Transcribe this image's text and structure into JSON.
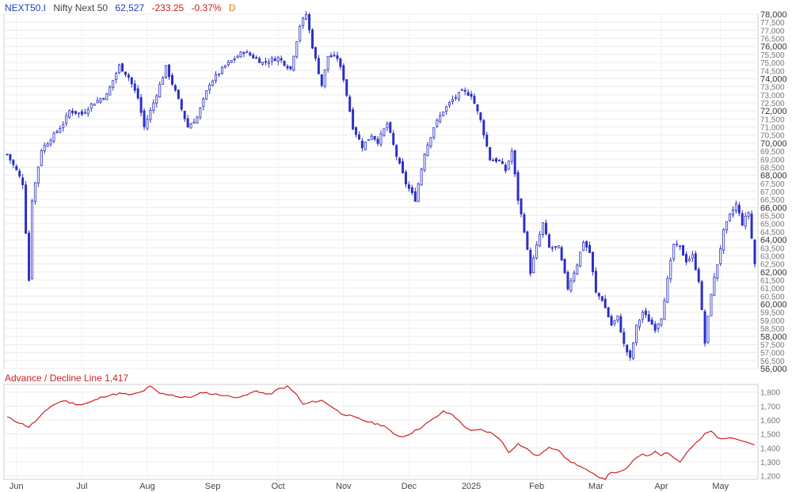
{
  "header": {
    "symbol": "NEXT50.I",
    "name": "Nifty Next 50",
    "last": "62,527",
    "change": "-233.25",
    "change_pct": "-0.37%",
    "period": "D"
  },
  "colors": {
    "candle": "#2b2fc4",
    "adline": "#cc1f1f",
    "symbol": "#1f3fbf",
    "last": "#1f3fbf",
    "change": "#cc1f1f",
    "period": "#e07a10",
    "grid": "#ececec"
  },
  "adline_panel": {
    "label": "Advance / Decline Line 1,417"
  },
  "chart_data": [
    {
      "type": "candlestick",
      "ylim": [
        56000,
        78000
      ],
      "y_ticks_major": [
        "78,000",
        "76,000",
        "74,000",
        "72,000",
        "70,000",
        "68,000",
        "66,000",
        "64,000",
        "62,000",
        "60,000",
        "58,000",
        "56,000"
      ],
      "y_ticks_minor": [
        "77,500",
        "77,000",
        "76,500",
        "75,500",
        "75,000",
        "74,500",
        "73,500",
        "73,000",
        "72,500",
        "71,500",
        "71,000",
        "70,500",
        "69,500",
        "69,000",
        "68,500",
        "67,500",
        "67,000",
        "66,500",
        "65,500",
        "65,000",
        "64,500",
        "63,500",
        "63,000",
        "62,500",
        "61,500",
        "61,000",
        "60,500",
        "59,500",
        "59,000",
        "58,500",
        "57,500",
        "57,000",
        "56,500"
      ],
      "x_labels": [
        "Jun",
        "Jul",
        "Aug",
        "Sep",
        "Oct",
        "Nov",
        "Dec",
        "2025",
        "Feb",
        "Mar",
        "Apr",
        "May"
      ],
      "anchors": [
        [
          0,
          69300
        ],
        [
          3,
          68300
        ],
        [
          5,
          67500
        ],
        [
          7,
          61500
        ],
        [
          8,
          66500
        ],
        [
          11,
          69600
        ],
        [
          15,
          70500
        ],
        [
          18,
          71200
        ],
        [
          20,
          72000
        ],
        [
          24,
          71800
        ],
        [
          27,
          72400
        ],
        [
          32,
          73000
        ],
        [
          36,
          74800
        ],
        [
          39,
          74100
        ],
        [
          42,
          72800
        ],
        [
          44,
          71000
        ],
        [
          47,
          72500
        ],
        [
          51,
          74700
        ],
        [
          54,
          73200
        ],
        [
          58,
          71000
        ],
        [
          61,
          71600
        ],
        [
          65,
          73700
        ],
        [
          70,
          74800
        ],
        [
          76,
          75700
        ],
        [
          82,
          75000
        ],
        [
          87,
          75300
        ],
        [
          91,
          74600
        ],
        [
          94,
          77300
        ],
        [
          96,
          78000
        ],
        [
          98,
          76000
        ],
        [
          101,
          73600
        ],
        [
          103,
          75400
        ],
        [
          106,
          75300
        ],
        [
          108,
          74000
        ],
        [
          111,
          71000
        ],
        [
          114,
          69800
        ],
        [
          117,
          70500
        ],
        [
          119,
          70100
        ],
        [
          122,
          71200
        ],
        [
          125,
          69200
        ],
        [
          128,
          67500
        ],
        [
          131,
          66500
        ],
        [
          134,
          69400
        ],
        [
          137,
          71000
        ],
        [
          140,
          72000
        ],
        [
          143,
          72700
        ],
        [
          146,
          73200
        ],
        [
          149,
          73000
        ],
        [
          152,
          71400
        ],
        [
          155,
          69000
        ],
        [
          158,
          68900
        ],
        [
          160,
          68300
        ],
        [
          162,
          69500
        ],
        [
          164,
          66500
        ],
        [
          166,
          64600
        ],
        [
          168,
          62000
        ],
        [
          170,
          63600
        ],
        [
          172,
          65000
        ],
        [
          174,
          63500
        ],
        [
          177,
          63500
        ],
        [
          180,
          61000
        ],
        [
          183,
          62500
        ],
        [
          185,
          63900
        ],
        [
          187,
          63200
        ],
        [
          189,
          60700
        ],
        [
          191,
          60300
        ],
        [
          194,
          58700
        ],
        [
          196,
          59200
        ],
        [
          198,
          57500
        ],
        [
          200,
          56600
        ],
        [
          202,
          58600
        ],
        [
          204,
          59500
        ],
        [
          206,
          59000
        ],
        [
          208,
          58500
        ],
        [
          210,
          59200
        ],
        [
          212,
          61500
        ],
        [
          214,
          63700
        ],
        [
          216,
          63500
        ],
        [
          218,
          62700
        ],
        [
          220,
          63000
        ],
        [
          222,
          61500
        ],
        [
          224,
          57600
        ],
        [
          226,
          60700
        ],
        [
          228,
          62500
        ],
        [
          230,
          64500
        ],
        [
          232,
          65500
        ],
        [
          234,
          66200
        ],
        [
          236,
          65000
        ],
        [
          238,
          65700
        ],
        [
          240,
          62500
        ]
      ]
    },
    {
      "type": "line",
      "title": "Advance / Decline Line 1,417",
      "ylim": [
        1175,
        1855
      ],
      "y_ticks": [
        "1,800",
        "1,700",
        "1,600",
        "1,500",
        "1,400",
        "1,300",
        "1,200"
      ],
      "anchors": [
        [
          0,
          1620
        ],
        [
          4,
          1580
        ],
        [
          7,
          1550
        ],
        [
          10,
          1610
        ],
        [
          14,
          1700
        ],
        [
          18,
          1740
        ],
        [
          21,
          1720
        ],
        [
          24,
          1710
        ],
        [
          27,
          1730
        ],
        [
          31,
          1770
        ],
        [
          36,
          1790
        ],
        [
          40,
          1780
        ],
        [
          43,
          1800
        ],
        [
          46,
          1840
        ],
        [
          49,
          1790
        ],
        [
          53,
          1780
        ],
        [
          56,
          1760
        ],
        [
          60,
          1770
        ],
        [
          63,
          1800
        ],
        [
          66,
          1785
        ],
        [
          69,
          1780
        ],
        [
          72,
          1765
        ],
        [
          76,
          1770
        ],
        [
          80,
          1810
        ],
        [
          84,
          1780
        ],
        [
          87,
          1820
        ],
        [
          90,
          1840
        ],
        [
          93,
          1780
        ],
        [
          95,
          1710
        ],
        [
          98,
          1730
        ],
        [
          101,
          1740
        ],
        [
          104,
          1700
        ],
        [
          107,
          1650
        ],
        [
          110,
          1630
        ],
        [
          114,
          1600
        ],
        [
          117,
          1580
        ],
        [
          121,
          1560
        ],
        [
          124,
          1500
        ],
        [
          127,
          1480
        ],
        [
          130,
          1510
        ],
        [
          133,
          1550
        ],
        [
          137,
          1610
        ],
        [
          140,
          1660
        ],
        [
          143,
          1640
        ],
        [
          146,
          1570
        ],
        [
          149,
          1520
        ],
        [
          152,
          1530
        ],
        [
          155,
          1510
        ],
        [
          158,
          1470
        ],
        [
          161,
          1370
        ],
        [
          164,
          1430
        ],
        [
          167,
          1390
        ],
        [
          170,
          1340
        ],
        [
          174,
          1400
        ],
        [
          177,
          1390
        ],
        [
          180,
          1310
        ],
        [
          183,
          1280
        ],
        [
          186,
          1240
        ],
        [
          189,
          1200
        ],
        [
          192,
          1180
        ],
        [
          194,
          1230
        ],
        [
          196,
          1220
        ],
        [
          198,
          1240
        ],
        [
          200,
          1280
        ],
        [
          202,
          1330
        ],
        [
          204,
          1360
        ],
        [
          206,
          1340
        ],
        [
          208,
          1380
        ],
        [
          210,
          1350
        ],
        [
          212,
          1370
        ],
        [
          214,
          1330
        ],
        [
          216,
          1300
        ],
        [
          218,
          1360
        ],
        [
          220,
          1410
        ],
        [
          222,
          1450
        ],
        [
          224,
          1500
        ],
        [
          226,
          1520
        ],
        [
          228,
          1480
        ],
        [
          230,
          1460
        ],
        [
          232,
          1480
        ],
        [
          234,
          1470
        ],
        [
          236,
          1450
        ],
        [
          238,
          1440
        ],
        [
          240,
          1417
        ]
      ]
    }
  ]
}
